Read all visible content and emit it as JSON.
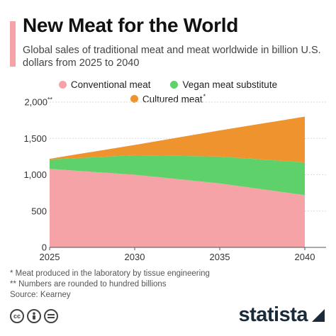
{
  "header": {
    "title": "New Meat for the World",
    "subtitle": "Global sales of traditional meat and meat worldwide in billion U.S. dollars from 2025 to 2040"
  },
  "legend": {
    "conventional": "Conventional meat",
    "vegan": "Vegan meat substitute",
    "cultured": "Cultured meat",
    "cultured_marker": "*"
  },
  "chart_data": {
    "type": "area",
    "stacked": true,
    "x": [
      2025,
      2030,
      2035,
      2040
    ],
    "series": [
      {
        "name": "Conventional meat",
        "values": [
          1080,
          1000,
          880,
          720
        ],
        "color": "#f6a3a7"
      },
      {
        "name": "Vegan meat substitute",
        "values": [
          130,
          270,
          370,
          450
        ],
        "color": "#5fd16b"
      },
      {
        "name": "Cultured meat",
        "values": [
          10,
          140,
          360,
          630
        ],
        "color": "#ef932f"
      }
    ],
    "xlim": [
      2025,
      2040
    ],
    "ylim": [
      0,
      2000
    ],
    "yticks": [
      0,
      500,
      1000,
      1500,
      2000
    ],
    "ytick_labels": [
      "0",
      "500",
      "1,000",
      "1,500",
      "2,000"
    ],
    "ytick_top_marker": "**",
    "xticks": [
      2025,
      2030,
      2035,
      2040
    ],
    "xtick_labels": [
      "2025",
      "2030",
      "2035",
      "2040"
    ],
    "grid": true,
    "legend_position": "top"
  },
  "footnotes": [
    "* Meat produced in the laboratory by tissue engineering",
    "** Numbers are rounded to hundred billions",
    "Source: Kearney"
  ],
  "footer": {
    "brand": "statista",
    "icons": [
      "cc-icon",
      "by-icon",
      "equals-icon"
    ]
  }
}
